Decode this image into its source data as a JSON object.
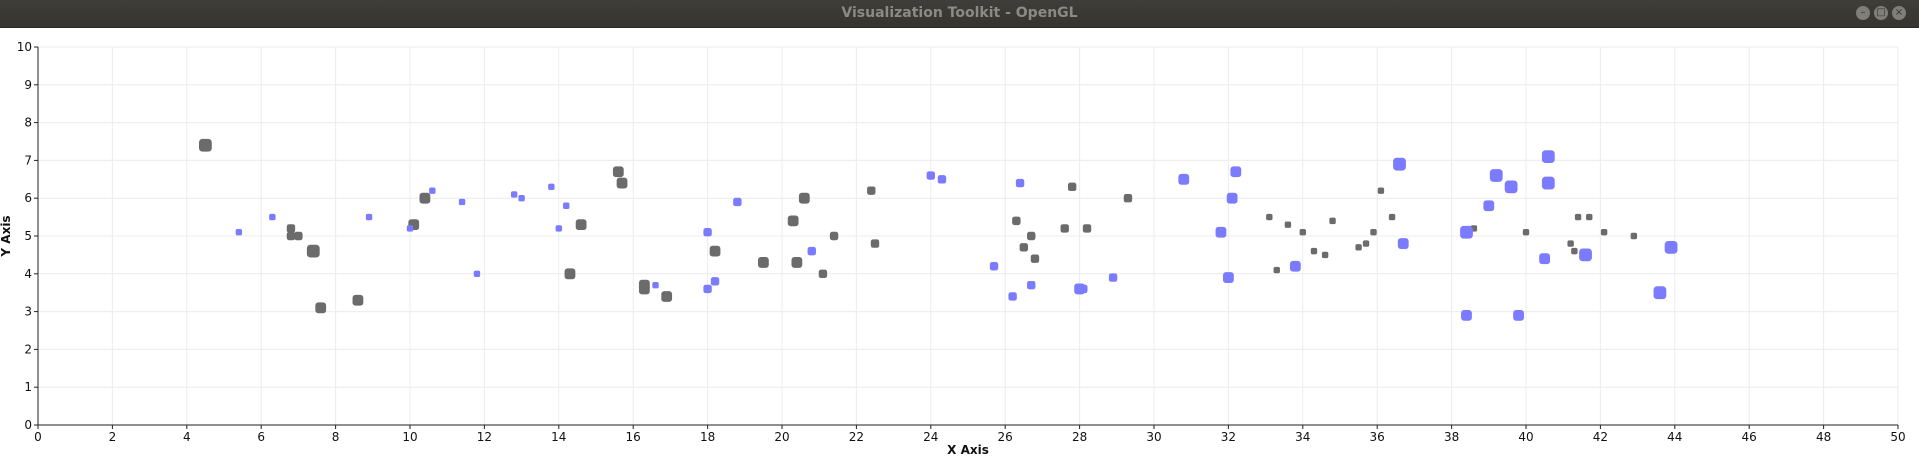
{
  "window": {
    "title": "Visualization Toolkit - OpenGL",
    "buttons": [
      {
        "name": "minimize",
        "icon": "minimize-icon",
        "glyph": "–"
      },
      {
        "name": "maximize",
        "icon": "maximize-icon",
        "glyph": "□"
      },
      {
        "name": "close",
        "icon": "close-icon",
        "glyph": "×"
      }
    ]
  },
  "chart_data": {
    "type": "scatter",
    "title": "",
    "xlabel": "X Axis",
    "ylabel": "Y Axis",
    "xlim": [
      0,
      50
    ],
    "ylim": [
      0,
      10
    ],
    "x_ticks": [
      "0",
      "2",
      "4",
      "6",
      "8",
      "10",
      "12",
      "14",
      "16",
      "18",
      "20",
      "22",
      "24",
      "26",
      "28",
      "30",
      "32",
      "34",
      "36",
      "38",
      "40",
      "42",
      "44",
      "46",
      "48",
      "50"
    ],
    "y_ticks": [
      "0",
      "1",
      "2",
      "3",
      "4",
      "5",
      "6",
      "7",
      "8",
      "9",
      "10"
    ],
    "grid": true,
    "colors": {
      "gray": "#6b6b6b",
      "blue": "#7b7bff"
    },
    "series": [
      {
        "color": "gray",
        "points": [
          [
            4.5,
            7.4,
            "L"
          ],
          [
            6.8,
            5.2,
            "S"
          ],
          [
            6.8,
            5.0,
            "S"
          ],
          [
            7.0,
            5.0,
            "S"
          ],
          [
            7.4,
            4.6,
            "L"
          ],
          [
            7.6,
            3.1,
            "M"
          ],
          [
            8.6,
            3.3,
            "M"
          ],
          [
            10.1,
            5.3,
            "M"
          ],
          [
            10.4,
            6.0,
            "M"
          ],
          [
            14.3,
            4.0,
            "M"
          ],
          [
            14.6,
            5.3,
            "M"
          ],
          [
            15.6,
            6.7,
            "M"
          ],
          [
            15.7,
            6.4,
            "M"
          ],
          [
            16.3,
            3.7,
            "M"
          ],
          [
            16.3,
            3.6,
            "M"
          ],
          [
            16.9,
            3.4,
            "M"
          ],
          [
            18.2,
            4.6,
            "M"
          ],
          [
            19.5,
            4.3,
            "M"
          ],
          [
            20.3,
            5.4,
            "M"
          ],
          [
            20.4,
            4.3,
            "M"
          ],
          [
            20.6,
            6.0,
            "M"
          ],
          [
            21.1,
            4.0,
            "S"
          ],
          [
            21.4,
            5.0,
            "S"
          ],
          [
            22.4,
            6.2,
            "S"
          ],
          [
            22.5,
            4.8,
            "S"
          ],
          [
            26.3,
            5.4,
            "S"
          ],
          [
            26.5,
            4.7,
            "S"
          ],
          [
            26.7,
            5.0,
            "S"
          ],
          [
            26.8,
            4.4,
            "S"
          ],
          [
            27.6,
            5.2,
            "S"
          ],
          [
            27.8,
            6.3,
            "S"
          ],
          [
            28.2,
            5.2,
            "S"
          ],
          [
            29.3,
            6.0,
            "S"
          ],
          [
            33.1,
            5.5,
            "XS"
          ],
          [
            33.3,
            4.1,
            "XS"
          ],
          [
            33.6,
            5.3,
            "XS"
          ],
          [
            34.0,
            5.1,
            "XS"
          ],
          [
            34.3,
            4.6,
            "XS"
          ],
          [
            34.6,
            4.5,
            "XS"
          ],
          [
            34.8,
            5.4,
            "XS"
          ],
          [
            35.5,
            4.7,
            "XS"
          ],
          [
            35.7,
            4.8,
            "XS"
          ],
          [
            35.9,
            5.1,
            "XS"
          ],
          [
            36.1,
            6.2,
            "XS"
          ],
          [
            36.4,
            5.5,
            "XS"
          ],
          [
            38.6,
            5.2,
            "XS"
          ],
          [
            40.0,
            5.1,
            "XS"
          ],
          [
            41.2,
            4.8,
            "XS"
          ],
          [
            41.3,
            4.6,
            "XS"
          ],
          [
            41.4,
            5.5,
            "XS"
          ],
          [
            41.7,
            5.5,
            "XS"
          ],
          [
            42.1,
            5.1,
            "XS"
          ],
          [
            42.9,
            5.0,
            "XS"
          ]
        ]
      },
      {
        "color": "blue",
        "points": [
          [
            5.4,
            5.1,
            "XS"
          ],
          [
            6.3,
            5.5,
            "XS"
          ],
          [
            8.9,
            5.5,
            "XS"
          ],
          [
            10.0,
            5.2,
            "XS"
          ],
          [
            10.6,
            6.2,
            "XS"
          ],
          [
            11.4,
            5.9,
            "XS"
          ],
          [
            11.8,
            4.0,
            "XS"
          ],
          [
            12.8,
            6.1,
            "XS"
          ],
          [
            13.0,
            6.0,
            "XS"
          ],
          [
            13.8,
            6.3,
            "XS"
          ],
          [
            14.0,
            5.2,
            "XS"
          ],
          [
            14.2,
            5.8,
            "XS"
          ],
          [
            16.6,
            3.7,
            "XS"
          ],
          [
            18.0,
            5.1,
            "S"
          ],
          [
            18.0,
            3.6,
            "S"
          ],
          [
            18.2,
            3.8,
            "S"
          ],
          [
            18.8,
            5.9,
            "S"
          ],
          [
            20.8,
            4.6,
            "S"
          ],
          [
            24.0,
            6.6,
            "S"
          ],
          [
            24.3,
            6.5,
            "S"
          ],
          [
            25.7,
            4.2,
            "S"
          ],
          [
            26.2,
            3.4,
            "S"
          ],
          [
            26.4,
            6.4,
            "S"
          ],
          [
            26.7,
            3.7,
            "S"
          ],
          [
            28.0,
            3.6,
            "M"
          ],
          [
            28.1,
            3.6,
            "S"
          ],
          [
            28.9,
            3.9,
            "S"
          ],
          [
            30.8,
            6.5,
            "M"
          ],
          [
            31.8,
            5.1,
            "M"
          ],
          [
            32.0,
            3.9,
            "M"
          ],
          [
            32.1,
            6.0,
            "M"
          ],
          [
            32.2,
            6.7,
            "M"
          ],
          [
            33.8,
            4.2,
            "M"
          ],
          [
            36.6,
            6.9,
            "L"
          ],
          [
            36.7,
            4.8,
            "M"
          ],
          [
            38.4,
            2.9,
            "M"
          ],
          [
            38.4,
            5.1,
            "L"
          ],
          [
            39.0,
            5.8,
            "M"
          ],
          [
            39.2,
            6.6,
            "L"
          ],
          [
            39.6,
            6.3,
            "L"
          ],
          [
            39.8,
            2.9,
            "M"
          ],
          [
            40.5,
            4.4,
            "M"
          ],
          [
            40.6,
            7.1,
            "L"
          ],
          [
            40.6,
            6.4,
            "L"
          ],
          [
            41.6,
            4.5,
            "L"
          ],
          [
            43.6,
            3.5,
            "L"
          ],
          [
            43.9,
            4.7,
            "L"
          ]
        ]
      }
    ]
  }
}
